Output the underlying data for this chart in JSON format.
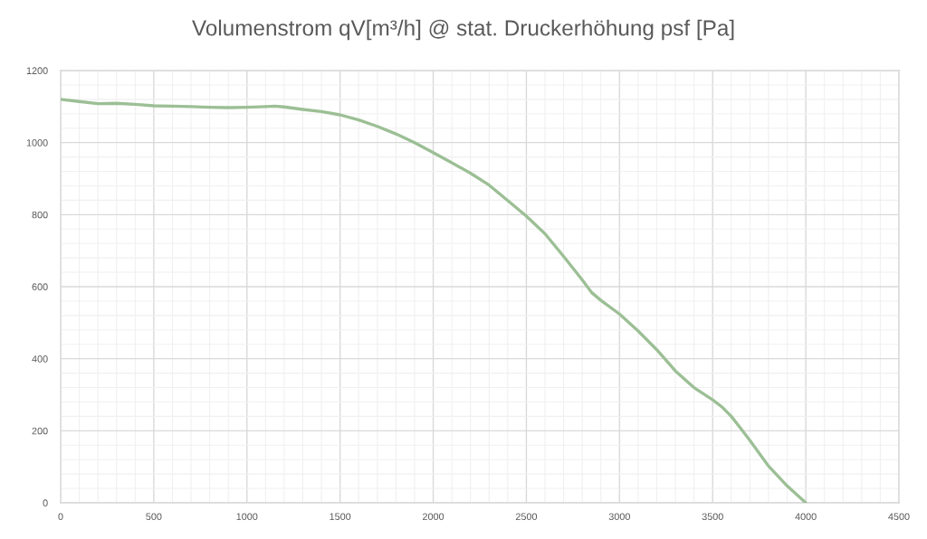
{
  "chart_data": {
    "type": "line",
    "title": "Volumenstrom qV[m³/h] @ stat. Druckerhöhung psf [Pa]",
    "x": [
      0,
      100,
      200,
      300,
      400,
      500,
      600,
      700,
      800,
      900,
      1000,
      1100,
      1150,
      1200,
      1300,
      1400,
      1500,
      1600,
      1700,
      1800,
      1900,
      2000,
      2100,
      2200,
      2300,
      2400,
      2500,
      2600,
      2700,
      2800,
      2850,
      2900,
      3000,
      3100,
      3200,
      3300,
      3400,
      3500,
      3550,
      3600,
      3650,
      3700,
      3800,
      3900,
      4000
    ],
    "series": [
      {
        "color": "#9cbf95",
        "values": [
          1120,
          1114,
          1108,
          1109,
          1106,
          1102,
          1101,
          1100,
          1098,
          1097,
          1098,
          1100,
          1101,
          1099,
          1092,
          1086,
          1077,
          1063,
          1045,
          1024,
          1000,
          972,
          944,
          915,
          882,
          839,
          796,
          747,
          684,
          619,
          584,
          562,
          524,
          477,
          425,
          366,
          320,
          286,
          266,
          240,
          207,
          173,
          102,
          47,
          0
        ]
      }
    ],
    "xlim": [
      0,
      4500
    ],
    "xticks": [
      0,
      500,
      1000,
      1500,
      2000,
      2500,
      3000,
      3500,
      4000,
      4500
    ],
    "ylim": [
      0,
      1200
    ],
    "yticks": [
      0,
      200,
      400,
      600,
      800,
      1000,
      1200
    ],
    "grid": true
  }
}
